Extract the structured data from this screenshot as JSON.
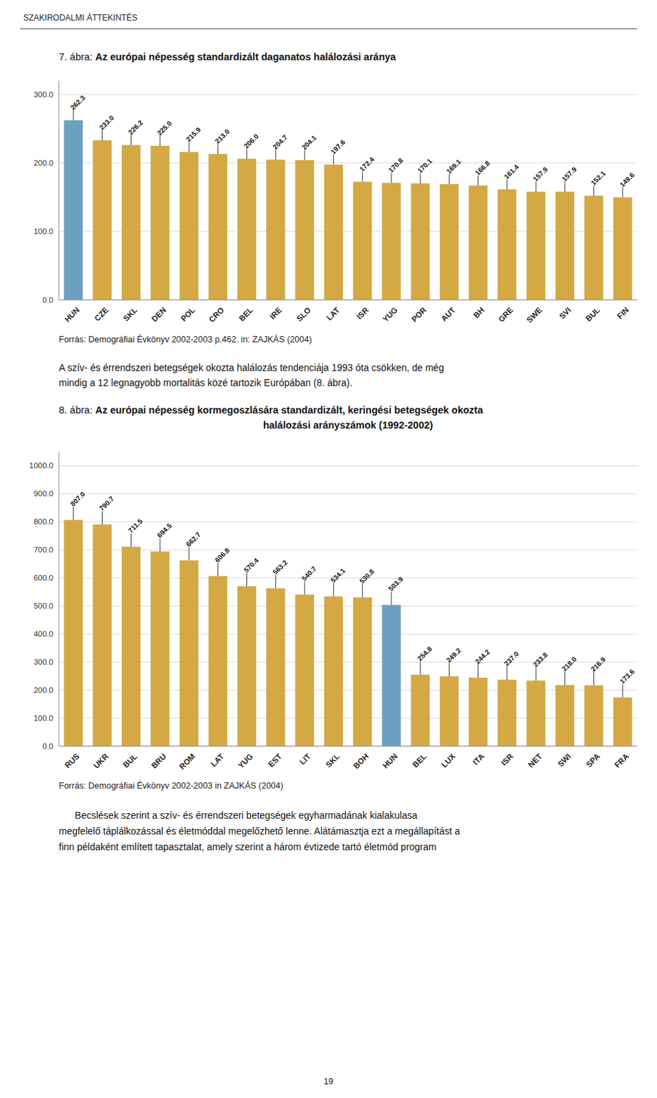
{
  "header": "SZAKIRODALMI ÁTTEKINTÉS",
  "chart_data": [
    {
      "type": "bar",
      "title": "7. ábra: Az európai népesség standardizált daganatos halálozási aránya",
      "categories": [
        "HUN",
        "CZE",
        "SKL",
        "DEN",
        "POL",
        "CRO",
        "BEL",
        "IRE",
        "SLO",
        "LAT",
        "ISR",
        "YUG",
        "POR",
        "AUT",
        "BH",
        "GRE",
        "SWE",
        "SVI",
        "BUL",
        "FIN"
      ],
      "values": [
        262.3,
        233.0,
        226.2,
        225.0,
        215.9,
        213.0,
        206.0,
        204.7,
        204.1,
        197.6,
        172.4,
        170.8,
        170.1,
        169.1,
        166.8,
        161.4,
        157.9,
        157.9,
        152.1,
        149.6
      ],
      "value_labels": [
        "262.3",
        "233.0",
        "226.2",
        "225.0",
        "215.9",
        "213.0",
        "206.0",
        "204.7",
        "204.1",
        "197.6",
        "172.4",
        "170.8",
        "170.1",
        "169.1",
        "166.8",
        "161.4",
        "157.9",
        "157.9",
        "152.1",
        "149.6"
      ],
      "colors": [
        "#6CA0C0",
        "#D4A843",
        "#D4A843",
        "#D4A843",
        "#D4A843",
        "#D4A843",
        "#D4A843",
        "#D4A843",
        "#D4A843",
        "#D4A843",
        "#D4A843",
        "#D4A843",
        "#D4A843",
        "#D4A843",
        "#D4A843",
        "#D4A843",
        "#D4A843",
        "#D4A843",
        "#D4A843",
        "#D4A843"
      ],
      "ylim": [
        0,
        320
      ],
      "yticks": [
        {
          "value": 0,
          "label": "0.0"
        },
        {
          "value": 100,
          "label": "100.0"
        },
        {
          "value": 200,
          "label": "200.0"
        },
        {
          "value": 300,
          "label": "300.0"
        }
      ],
      "grid": true,
      "data_labels": true,
      "source": "Forrás: Demográfiai Évkönyv 2002-2003 p.462. in: ZAJKÁS (2004)"
    },
    {
      "type": "bar",
      "title": "8. ábra: Az európai népesség kormegoszlására standardizált, keringési betegségek okozta",
      "subtitle": "halálozási arányszámok (1992-2002)",
      "categories": [
        "RUS",
        "UKR",
        "BUL",
        "BRU",
        "ROM",
        "LAT",
        "YUG",
        "EST",
        "LIT",
        "SKL",
        "BOH",
        "HUN",
        "BEL",
        "LUX",
        "ITA",
        "ISR",
        "NET",
        "SWI",
        "SPA",
        "FRA"
      ],
      "values": [
        807.0,
        790.7,
        711.5,
        694.5,
        662.7,
        606.8,
        570.4,
        563.2,
        540.7,
        534.1,
        530.8,
        503.9,
        254.8,
        249.2,
        244.2,
        237.0,
        233.8,
        218.0,
        216.9,
        173.6
      ],
      "value_labels": [
        "807.0",
        "790.7",
        "711.5",
        "694.5",
        "662.7",
        "606.8",
        "570.4",
        "563.2",
        "540.7",
        "534.1",
        "530.8",
        "503.9",
        "254.8",
        "249.2",
        "244.2",
        "237.0",
        "233.8",
        "218.0",
        "216.9",
        "173.6"
      ],
      "colors": [
        "#D4A843",
        "#D4A843",
        "#D4A843",
        "#D4A843",
        "#D4A843",
        "#D4A843",
        "#D4A843",
        "#D4A843",
        "#D4A843",
        "#D4A843",
        "#D4A843",
        "#6CA0C0",
        "#D4A843",
        "#D4A843",
        "#D4A843",
        "#D4A843",
        "#D4A843",
        "#D4A843",
        "#D4A843",
        "#D4A843"
      ],
      "ylim": [
        0,
        1050
      ],
      "yticks": [
        {
          "value": 0,
          "label": "0.0"
        },
        {
          "value": 100,
          "label": "100.0"
        },
        {
          "value": 200,
          "label": "200.0"
        },
        {
          "value": 300,
          "label": "300.0"
        },
        {
          "value": 400,
          "label": "400.0"
        },
        {
          "value": 500,
          "label": "500.0"
        },
        {
          "value": 600,
          "label": "600.0"
        },
        {
          "value": 700,
          "label": "700.0"
        },
        {
          "value": 800,
          "label": "800.0"
        },
        {
          "value": 900,
          "label": "900.0"
        },
        {
          "value": 1000,
          "label": "1000.0"
        }
      ],
      "grid": true,
      "data_labels": true,
      "source": "Forrás: Demográfiai Évkönyv 2002-2003 in ZAJKÁS (2004)"
    }
  ],
  "text_between": [
    "A szív- és érrendszeri betegségek okozta halálozás tendenciája 1993 óta csökken, de még",
    "mindig a 12 legnagyobb mortalitás közé tartozik Európában (8. ábra)."
  ],
  "text_below": [
    "      Becslések szerint a szív- és érrendszeri betegségek egyharmadának kialakulasa",
    "megfelelő táplálkozással és életmóddal megelőzhető lenne. Alátámasztja ezt a megállapítást a",
    "finn példaként említett tapasztalat, amely szerint a három évtizede tartó életmód program"
  ],
  "page_number": "19"
}
